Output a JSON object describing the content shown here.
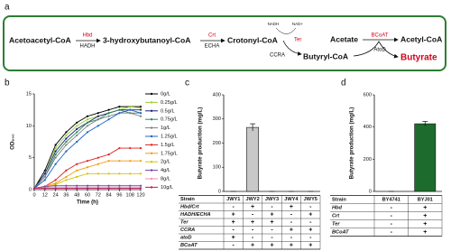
{
  "pathway": {
    "panel": "a",
    "compounds": [
      "Acetoacetyl-CoA",
      "3-hydroxybutanoyl-CoA",
      "Crotonyl-CoA",
      "Butyryl-CoA",
      "Acetate",
      "Acetyl-CoA",
      "Butyrate"
    ],
    "enzymes": [
      "Hbd",
      "HADH",
      "Crt",
      "ECHA",
      "Ter",
      "CCRA",
      "BCoAT",
      "AtoD"
    ],
    "cofactors": [
      "NADH",
      "NAD+"
    ]
  },
  "chart_data": [
    {
      "panel": "b",
      "type": "line",
      "x_label": "Time (h)",
      "y_label": "OD₆₀₀",
      "x": [
        0,
        12,
        24,
        36,
        48,
        60,
        72,
        84,
        96,
        108,
        120
      ],
      "xlim": [
        0,
        120
      ],
      "xticks": [
        0,
        12,
        24,
        36,
        48,
        60,
        72,
        84,
        96,
        108,
        120
      ],
      "ylim": [
        0,
        15
      ],
      "yticks": [
        0,
        5,
        10,
        15
      ],
      "legend": "right",
      "series": [
        {
          "name": "0g/L",
          "color": "#000000",
          "values": [
            0.2,
            3,
            7,
            9,
            10.5,
            11.5,
            12,
            12.5,
            13,
            13,
            13
          ]
        },
        {
          "name": "0.25g/L",
          "color": "#9acd32",
          "values": [
            0.2,
            2.5,
            6.5,
            8.5,
            10,
            11,
            11.5,
            12,
            12.5,
            13,
            12.8
          ]
        },
        {
          "name": "0.5g/L",
          "color": "#1a237e",
          "values": [
            0.2,
            2.5,
            6,
            8,
            9.5,
            10.5,
            11.5,
            12,
            12.5,
            12.5,
            12.5
          ]
        },
        {
          "name": "0.75g/L",
          "color": "#2e8b57",
          "values": [
            0.2,
            2,
            5.5,
            7.5,
            9,
            10.5,
            11,
            12,
            12.5,
            12,
            12
          ]
        },
        {
          "name": "1g/L",
          "color": "#808080",
          "values": [
            0.2,
            2,
            5,
            7,
            8.5,
            10,
            11,
            11.5,
            12,
            12,
            11.5
          ]
        },
        {
          "name": "1.25g/L",
          "color": "#1e64c8",
          "values": [
            0.2,
            1.5,
            4,
            6,
            7.5,
            9,
            10,
            11,
            12,
            12.5,
            12
          ]
        },
        {
          "name": "1.5g/L",
          "color": "#e02020",
          "values": [
            0.2,
            0.5,
            1.5,
            3,
            4,
            4.5,
            5,
            5.5,
            6.5,
            6.5,
            6.5
          ]
        },
        {
          "name": "1.75g/L",
          "color": "#f39c12",
          "values": [
            0.2,
            0.5,
            1,
            2,
            3,
            3.5,
            4,
            4.5,
            4.5,
            4.5,
            4.5
          ]
        },
        {
          "name": "2g/L",
          "color": "#d4c600",
          "values": [
            0.2,
            0.3,
            0.8,
            1.5,
            2,
            2.5,
            2.5,
            2.5,
            2.5,
            2.5,
            2.5
          ]
        },
        {
          "name": "4g/L",
          "color": "#7b3fa0",
          "values": [
            0.2,
            0.5,
            0.6,
            0.6,
            0.6,
            0.6,
            0.6,
            0.6,
            0.6,
            0.6,
            0.6
          ]
        },
        {
          "name": "8g/L",
          "color": "#f48fb1",
          "values": [
            0.2,
            0.3,
            0.3,
            0.3,
            0.3,
            0.3,
            0.3,
            0.3,
            0.3,
            0.3,
            0.3
          ]
        },
        {
          "name": "10g/L",
          "color": "#c2185b",
          "values": [
            0.2,
            0.2,
            0.2,
            0.2,
            0.2,
            0.2,
            0.2,
            0.2,
            0.2,
            0.2,
            0.2
          ]
        }
      ]
    },
    {
      "panel": "c",
      "type": "bar",
      "y_label": "Butyrate production (mg/L)",
      "categories": [
        "JWY1",
        "JWY2",
        "JWY3",
        "JWY4",
        "JWY5"
      ],
      "values": [
        0,
        265,
        0,
        0,
        0
      ],
      "errors": [
        0,
        15,
        0,
        0,
        0
      ],
      "color": "#c8c8c8",
      "ylim": [
        0,
        400
      ],
      "yticks": [
        0,
        100,
        200,
        300,
        400
      ],
      "table": {
        "header": "Strain",
        "rows": [
          {
            "label": "Hbd/Crt",
            "cells": [
              "-",
              "+",
              "-",
              "+",
              "-"
            ]
          },
          {
            "label": "HADH/ECHA",
            "cells": [
              "+",
              "-",
              "+",
              "-",
              "+"
            ]
          },
          {
            "label": "Ter",
            "cells": [
              "+",
              "+",
              "+",
              "-",
              "-"
            ]
          },
          {
            "label": "CCRA",
            "cells": [
              "-",
              "-",
              "-",
              "+",
              "+"
            ]
          },
          {
            "label": "atoD",
            "cells": [
              "+",
              "-",
              "-",
              "-",
              "-"
            ]
          },
          {
            "label": "BCoAT",
            "cells": [
              "-",
              "+",
              "+",
              "+",
              "+"
            ]
          }
        ]
      }
    },
    {
      "panel": "d",
      "type": "bar",
      "y_label": "Butyrate production (mg/L)",
      "categories": [
        "BY4741",
        "BYJ01"
      ],
      "values": [
        0,
        420
      ],
      "errors": [
        0,
        15
      ],
      "color": "#1e6b2e",
      "ylim": [
        0,
        600
      ],
      "yticks": [
        0,
        200,
        400,
        600
      ],
      "table": {
        "header": "Strain",
        "rows": [
          {
            "label": "Hbd",
            "cells": [
              "-",
              "+"
            ]
          },
          {
            "label": "Crt",
            "cells": [
              "-",
              "+"
            ]
          },
          {
            "label": "Ter",
            "cells": [
              "-",
              "+"
            ]
          },
          {
            "label": "BCoAT",
            "cells": [
              "-",
              "+"
            ]
          }
        ]
      }
    }
  ]
}
